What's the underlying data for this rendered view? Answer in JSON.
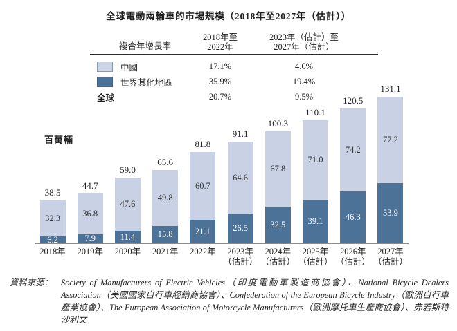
{
  "title": "全球電動兩輪車的市場規模（2018年至2027年（估計））",
  "cagr_table": {
    "row_header": "複合年增長率",
    "col1_header": [
      "2018年至",
      "2022年"
    ],
    "col2_header": [
      "2023年（估計）至",
      "2027年（估計）"
    ],
    "rows": [
      {
        "label": "中國",
        "swatch": "light",
        "v1": "17.1%",
        "v2": "4.6%"
      },
      {
        "label": "世界其他地區",
        "swatch": "dark",
        "v1": "35.9%",
        "v2": "19.4%"
      },
      {
        "label": "全球",
        "swatch": "none",
        "v1": "20.7%",
        "v2": "9.5%"
      }
    ]
  },
  "chart_data": {
    "type": "bar",
    "stacked": true,
    "title": "全球電動兩輪車的市場規模（2018年至2027年（估計））",
    "ylabel": "百萬輛",
    "ylim": [
      0,
      135
    ],
    "grid": false,
    "legend_position": "table-top-left",
    "categories": [
      {
        "label": "2018年",
        "sub": ""
      },
      {
        "label": "2019年",
        "sub": ""
      },
      {
        "label": "2020年",
        "sub": ""
      },
      {
        "label": "2021年",
        "sub": ""
      },
      {
        "label": "2022年",
        "sub": ""
      },
      {
        "label": "2023年",
        "sub": "（估計）"
      },
      {
        "label": "2024年",
        "sub": "（估計）"
      },
      {
        "label": "2025年",
        "sub": "（估計）"
      },
      {
        "label": "2026年",
        "sub": "（估計）"
      },
      {
        "label": "2027年",
        "sub": "（估計）"
      }
    ],
    "series": [
      {
        "name": "中國",
        "color": "#c8d2e4",
        "values": [
          32.3,
          36.8,
          47.6,
          49.8,
          60.7,
          64.6,
          67.8,
          71.0,
          74.2,
          77.2
        ]
      },
      {
        "name": "世界其他地區",
        "color": "#4d7298",
        "values": [
          6.2,
          7.9,
          11.4,
          15.8,
          21.1,
          26.5,
          32.5,
          39.1,
          46.3,
          53.9
        ]
      }
    ],
    "totals": [
      38.5,
      44.7,
      59.0,
      65.6,
      81.8,
      91.1,
      100.3,
      110.1,
      120.5,
      131.1
    ]
  },
  "colors": {
    "china_light": "#c8d2e4",
    "row_dark": "#4d7298"
  },
  "source": {
    "label": "資料來源：",
    "text": "Society of Manufacturers of Electric Vehicles（印度電動車製造商協會）、National Bicycle Dealers Association（美國國家自行車經銷商協會）、Confederation of the European Bicycle Industry（歐洲自行車產業協會）、The European Association of Motorcycle Manufacturers（歐洲摩托車生產商協會）、弗若斯特沙利文"
  }
}
